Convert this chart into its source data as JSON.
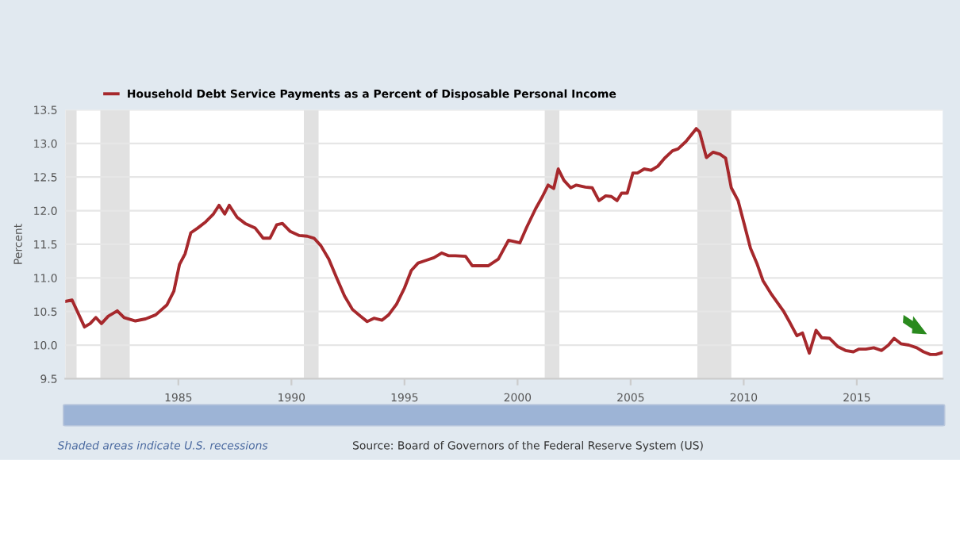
{
  "chart_data": {
    "type": "line",
    "xlabel": null,
    "ylabel": "Percent",
    "annotations": [
      "Shaded areas indicate U.S. recessions",
      "Source: Board of Governors of the Federal Reserve System (US)"
    ],
    "xlim": [
      1980,
      2018.8
    ],
    "ylim": [
      9.5,
      13.5
    ],
    "xticks": [
      1985,
      1990,
      1995,
      2000,
      2005,
      2010,
      2015
    ],
    "yticks": [
      {
        "value": 9.5,
        "label": "9.5"
      },
      {
        "value": 10,
        "label": "10.0"
      },
      {
        "value": 10.5,
        "label": "10.5"
      },
      {
        "value": 11,
        "label": "11.0"
      },
      {
        "value": 11.5,
        "label": "11.5"
      },
      {
        "value": 12,
        "label": "12.0"
      },
      {
        "value": 12.5,
        "label": "12.5"
      },
      {
        "value": 13,
        "label": "13.0"
      },
      {
        "value": 13.5,
        "label": "13.5"
      }
    ],
    "grid": "y",
    "legend": "top left",
    "marker": "none",
    "line_style": "solid",
    "bands": [
      {
        "axis": "x",
        "from": 1980.0,
        "to": 1980.5,
        "color": "#e1e1e1"
      },
      {
        "axis": "x",
        "from": 1981.55,
        "to": 1982.85,
        "color": "#e1e1e1"
      },
      {
        "axis": "x",
        "from": 1990.55,
        "to": 1991.2,
        "color": "#e1e1e1"
      },
      {
        "axis": "x",
        "from": 2001.2,
        "to": 2001.85,
        "color": "#e1e1e1"
      },
      {
        "axis": "x",
        "from": 2007.95,
        "to": 2009.45,
        "color": "#e1e1e1"
      }
    ],
    "series": [
      {
        "name": "Household Debt Service Payments as a Percent of Disposable Personal Income",
        "color": "#a6282c",
        "x": [
          1980.0,
          1980.3,
          1980.85,
          1981.1,
          1981.35,
          1981.6,
          1981.9,
          1982.3,
          1982.6,
          1983.1,
          1983.55,
          1984.0,
          1984.5,
          1984.8,
          1985.05,
          1985.3,
          1985.55,
          1985.85,
          1986.2,
          1986.55,
          1986.8,
          1987.05,
          1987.25,
          1987.6,
          1987.95,
          1988.4,
          1988.75,
          1989.05,
          1989.35,
          1989.6,
          1989.95,
          1990.35,
          1990.7,
          1991.0,
          1991.3,
          1991.65,
          1992.0,
          1992.35,
          1992.7,
          1993.05,
          1993.35,
          1993.65,
          1994.0,
          1994.3,
          1994.65,
          1995.0,
          1995.3,
          1995.6,
          1995.95,
          1996.3,
          1996.65,
          1996.95,
          1997.25,
          1997.7,
          1998.0,
          1998.2,
          1998.7,
          1999.15,
          1999.6,
          2000.1,
          2000.4,
          2000.8,
          2001.1,
          2001.35,
          2001.6,
          2001.8,
          2002.05,
          2002.35,
          2002.6,
          2003.0,
          2003.3,
          2003.6,
          2003.9,
          2004.15,
          2004.4,
          2004.6,
          2004.85,
          2005.1,
          2005.3,
          2005.6,
          2005.9,
          2006.2,
          2006.5,
          2006.85,
          2007.1,
          2007.45,
          2007.9,
          2008.05,
          2008.35,
          2008.65,
          2008.95,
          2009.2,
          2009.45,
          2009.75,
          2010.0,
          2010.3,
          2010.6,
          2010.85,
          2011.2,
          2011.45,
          2011.75,
          2012.05,
          2012.35,
          2012.6,
          2012.9,
          2013.2,
          2013.45,
          2013.8,
          2014.15,
          2014.5,
          2014.85,
          2015.1,
          2015.4,
          2015.75,
          2016.1,
          2016.4,
          2016.65,
          2016.95,
          2017.3,
          2017.65,
          2017.95,
          2018.25,
          2018.5,
          2018.8
        ],
        "values": [
          10.65,
          10.67,
          10.27,
          10.32,
          10.41,
          10.32,
          10.43,
          10.51,
          10.41,
          10.36,
          10.39,
          10.45,
          10.6,
          10.8,
          11.2,
          11.36,
          11.67,
          11.74,
          11.83,
          11.95,
          12.08,
          11.95,
          12.08,
          11.9,
          11.81,
          11.74,
          11.59,
          11.59,
          11.79,
          11.81,
          11.69,
          11.63,
          11.62,
          11.59,
          11.48,
          11.28,
          11.0,
          10.73,
          10.53,
          10.43,
          10.35,
          10.4,
          10.37,
          10.45,
          10.61,
          10.85,
          11.11,
          11.22,
          11.26,
          11.3,
          11.37,
          11.33,
          11.33,
          11.32,
          11.18,
          11.18,
          11.18,
          11.28,
          11.56,
          11.52,
          11.75,
          12.03,
          12.21,
          12.38,
          12.33,
          12.62,
          12.45,
          12.34,
          12.38,
          12.35,
          12.34,
          12.15,
          12.22,
          12.21,
          12.15,
          12.26,
          12.26,
          12.56,
          12.56,
          12.62,
          12.6,
          12.66,
          12.78,
          12.89,
          12.92,
          13.03,
          13.22,
          13.17,
          12.79,
          12.87,
          12.84,
          12.78,
          12.34,
          12.15,
          11.83,
          11.44,
          11.2,
          10.96,
          10.77,
          10.65,
          10.51,
          10.33,
          10.14,
          10.18,
          9.88,
          10.22,
          10.11,
          10.1,
          9.98,
          9.92,
          9.9,
          9.94,
          9.94,
          9.96,
          9.92,
          10.0,
          10.1,
          10.02,
          10.0,
          9.96,
          9.9,
          9.86,
          9.86,
          9.89
        ]
      }
    ]
  }
}
